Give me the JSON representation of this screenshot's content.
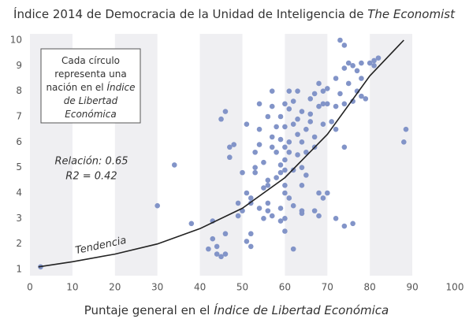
{
  "chart_data": {
    "type": "scatter",
    "title": [
      "Índice 2014 de Democracia de la Unidad de Inteligencia de ",
      "The Economist"
    ],
    "xlabel": [
      "Puntaje general en el ",
      "Índice de Libertad Económica"
    ],
    "note": [
      [
        "Cada círculo"
      ],
      [
        "representa una"
      ],
      [
        "nación en el ",
        "Índice"
      ],
      [
        "de Libertad"
      ],
      [
        "Económica"
      ]
    ],
    "stats": [
      "Relación: 0.65",
      "R2 = 0.42"
    ],
    "color": "#8294c8",
    "x": [
      2.5,
      30,
      34,
      38,
      42,
      43,
      43,
      44,
      44,
      45,
      46,
      46,
      45,
      46,
      47,
      47,
      48,
      49,
      49,
      50,
      50,
      51,
      51,
      51,
      52,
      52,
      52,
      52,
      53,
      53,
      53,
      54,
      54,
      54,
      54,
      55,
      55,
      55,
      56,
      56,
      56,
      56,
      56,
      57,
      57,
      57,
      57,
      57,
      58,
      58,
      58,
      59,
      59,
      59,
      59,
      59,
      59,
      60,
      60,
      60,
      60,
      60,
      60,
      60,
      60,
      60,
      61,
      61,
      61,
      61,
      61,
      62,
      62,
      62,
      62,
      62,
      63,
      63,
      63,
      63,
      64,
      64,
      64,
      64,
      64,
      64,
      65,
      65,
      65,
      66,
      66,
      66,
      67,
      67,
      67,
      67,
      68,
      68,
      68,
      68,
      69,
      69,
      69,
      69,
      70,
      70,
      70,
      71,
      72,
      72,
      72,
      72,
      73,
      73,
      74,
      74,
      74,
      74,
      74,
      75,
      75,
      76,
      76,
      76,
      77,
      77,
      78,
      78,
      78,
      79,
      80,
      81,
      81,
      82,
      88,
      88.5
    ],
    "values": [
      1.1,
      3.5,
      5.1,
      2.8,
      1.8,
      2.9,
      2.2,
      1.9,
      1.6,
      1.5,
      1.6,
      2.4,
      6.9,
      7.2,
      5.4,
      5.8,
      5.9,
      3.1,
      3.6,
      3.3,
      4.8,
      4.0,
      2.1,
      6.7,
      3.6,
      3.8,
      2.4,
      1.9,
      4.8,
      5.0,
      5.6,
      5.9,
      7.5,
      6.5,
      3.4,
      3.0,
      4.2,
      5.2,
      4.3,
      4.5,
      7.0,
      3.3,
      3.6,
      7.4,
      8.0,
      6.2,
      5.8,
      3.1,
      4.6,
      5.6,
      6.6,
      2.9,
      3.4,
      4.8,
      5.1,
      6.1,
      7.0,
      4.0,
      4.3,
      4.9,
      5.3,
      5.8,
      6.6,
      7.5,
      2.5,
      3.0,
      3.8,
      5.6,
      6.0,
      7.3,
      8.0,
      6.7,
      7.6,
      4.9,
      1.8,
      3.5,
      5.5,
      6.3,
      6.9,
      8.0,
      4.3,
      5.0,
      6.0,
      3.2,
      3.3,
      7.2,
      6.5,
      4.7,
      5.6,
      6.8,
      7.1,
      7.7,
      5.8,
      6.2,
      7.9,
      3.3,
      8.3,
      7.4,
      4.0,
      3.1,
      7.5,
      8.0,
      6.7,
      3.8,
      7.5,
      8.1,
      4.0,
      6.8,
      8.5,
      7.4,
      3.0,
      6.5,
      10.0,
      7.9,
      9.8,
      8.9,
      7.5,
      5.8,
      2.7,
      9.1,
      8.3,
      9.0,
      7.6,
      2.8,
      8.8,
      8.0,
      9.1,
      8.5,
      7.8,
      7.7,
      9.1,
      9.0,
      9.2,
      9.3,
      6.0,
      6.5
    ],
    "trend": {
      "label": "Tendencia",
      "x": [
        2,
        10,
        20,
        30,
        40,
        50,
        60,
        70,
        80,
        88
      ],
      "values": [
        1.1,
        1.3,
        1.6,
        2.0,
        2.6,
        3.4,
        4.6,
        6.3,
        8.6,
        10.0
      ]
    },
    "xlim": [
      0,
      100
    ],
    "xticks": [
      0,
      10,
      20,
      30,
      40,
      50,
      60,
      70,
      80,
      90,
      100
    ],
    "ylim": [
      1,
      10
    ],
    "yticks": [
      1,
      2,
      3,
      4,
      5,
      6,
      7,
      8,
      9,
      10
    ]
  }
}
